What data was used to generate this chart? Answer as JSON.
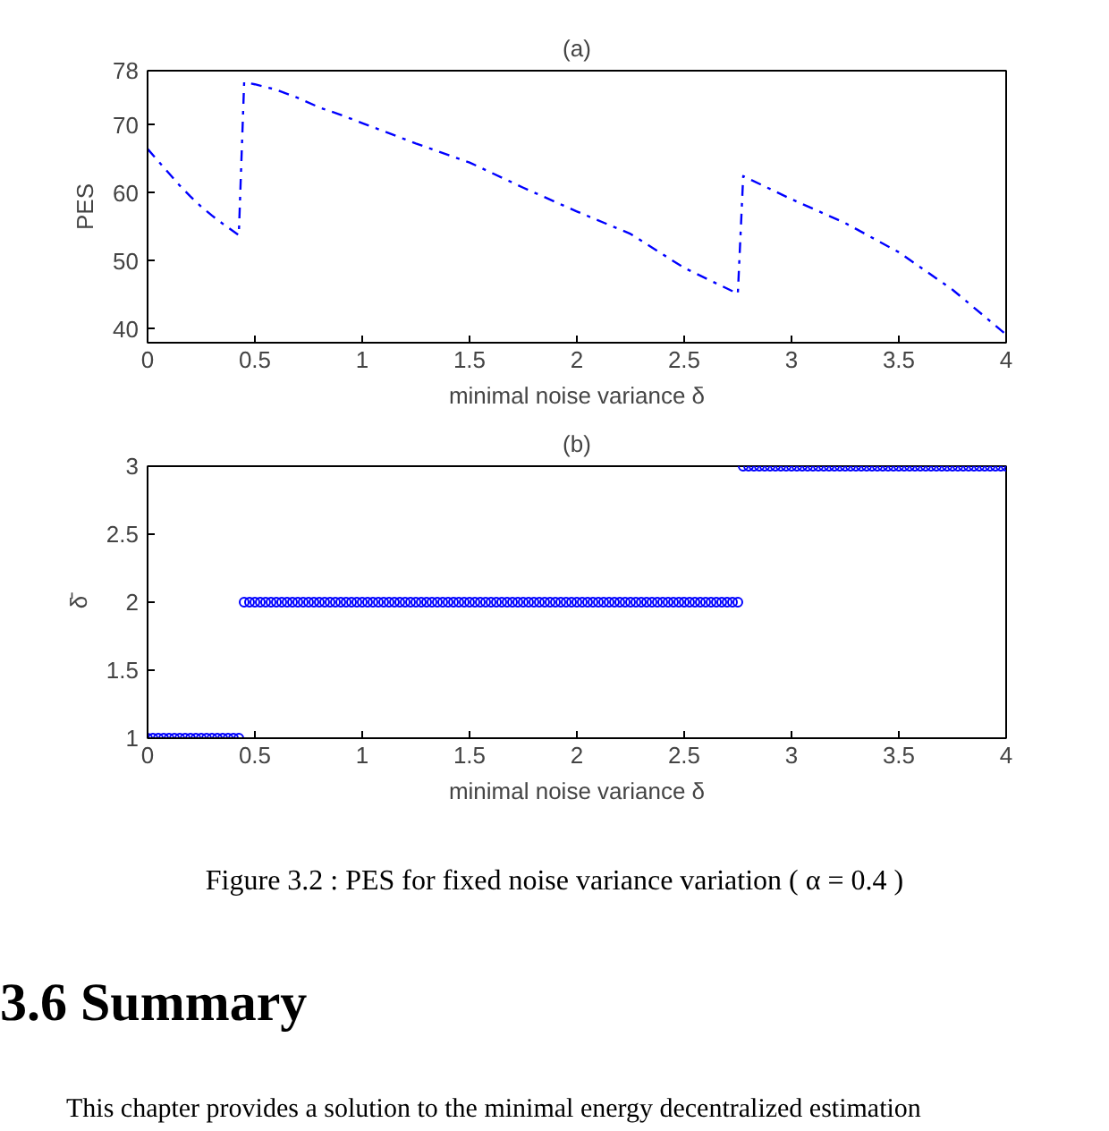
{
  "chart_data": [
    {
      "type": "line",
      "title": "(a)",
      "xlabel": "minimal noise variance δ",
      "ylabel": "PES",
      "color": "#0000ff",
      "line_style": "dashed",
      "x": [
        0,
        0.05,
        0.1,
        0.15,
        0.2,
        0.25,
        0.3,
        0.35,
        0.425,
        0.45,
        0.5,
        0.6,
        0.7,
        0.8,
        0.9,
        1.0,
        1.25,
        1.5,
        1.75,
        2.0,
        2.25,
        2.5,
        2.75,
        2.775,
        3.0,
        3.25,
        3.5,
        3.75,
        4.0
      ],
      "values": [
        66.5,
        64.7,
        62.9,
        61.1,
        59.5,
        58.0,
        56.7,
        55.5,
        53.8,
        76.3,
        76.0,
        75.2,
        74.0,
        72.6,
        71.5,
        70.3,
        67.3,
        64.5,
        60.8,
        57.3,
        54.0,
        49.0,
        45.2,
        62.5,
        59.1,
        55.6,
        51.3,
        45.8,
        39.2
      ],
      "xlim": [
        0,
        4
      ],
      "ylim": [
        38,
        78
      ],
      "xticks": [
        0,
        0.5,
        1,
        1.5,
        2,
        2.5,
        3,
        3.5,
        4
      ],
      "yticks": [
        40,
        50,
        60,
        70,
        78
      ]
    },
    {
      "type": "scatter",
      "title": "(b)",
      "xlabel": "minimal noise variance δ",
      "ylabel": "δ̄",
      "color": "#0000ff",
      "marker": "circle",
      "x": [
        0,
        0.025,
        0.05,
        0.075,
        0.1,
        0.125,
        0.15,
        0.175,
        0.2,
        0.225,
        0.25,
        0.275,
        0.3,
        0.325,
        0.35,
        0.375,
        0.4,
        0.425,
        0.45,
        0.475,
        0.5,
        0.525,
        0.55,
        0.575,
        0.6,
        0.625,
        0.65,
        0.675,
        0.7,
        0.725,
        0.75,
        0.775,
        0.8,
        0.825,
        0.85,
        0.875,
        0.9,
        0.925,
        0.95,
        0.975,
        1,
        1.025,
        1.05,
        1.075,
        1.1,
        1.125,
        1.15,
        1.175,
        1.2,
        1.225,
        1.25,
        1.275,
        1.3,
        1.325,
        1.35,
        1.375,
        1.4,
        1.425,
        1.45,
        1.475,
        1.5,
        1.525,
        1.55,
        1.575,
        1.6,
        1.625,
        1.65,
        1.675,
        1.7,
        1.725,
        1.75,
        1.775,
        1.8,
        1.825,
        1.85,
        1.875,
        1.9,
        1.925,
        1.95,
        1.975,
        2,
        2.025,
        2.05,
        2.075,
        2.1,
        2.125,
        2.15,
        2.175,
        2.2,
        2.225,
        2.25,
        2.275,
        2.3,
        2.325,
        2.35,
        2.375,
        2.4,
        2.425,
        2.45,
        2.475,
        2.5,
        2.525,
        2.55,
        2.575,
        2.6,
        2.625,
        2.65,
        2.675,
        2.7,
        2.725,
        2.75,
        2.775,
        2.8,
        2.825,
        2.85,
        2.875,
        2.9,
        2.925,
        2.95,
        2.975,
        3,
        3.025,
        3.05,
        3.075,
        3.1,
        3.125,
        3.15,
        3.175,
        3.2,
        3.225,
        3.25,
        3.275,
        3.3,
        3.325,
        3.35,
        3.375,
        3.4,
        3.425,
        3.45,
        3.475,
        3.5,
        3.525,
        3.55,
        3.575,
        3.6,
        3.625,
        3.65,
        3.675,
        3.7,
        3.725,
        3.75,
        3.775,
        3.8,
        3.825,
        3.85,
        3.875,
        3.9,
        3.925,
        3.95,
        3.975,
        4
      ],
      "values": [
        1,
        1,
        1,
        1,
        1,
        1,
        1,
        1,
        1,
        1,
        1,
        1,
        1,
        1,
        1,
        1,
        1,
        1,
        2,
        2,
        2,
        2,
        2,
        2,
        2,
        2,
        2,
        2,
        2,
        2,
        2,
        2,
        2,
        2,
        2,
        2,
        2,
        2,
        2,
        2,
        2,
        2,
        2,
        2,
        2,
        2,
        2,
        2,
        2,
        2,
        2,
        2,
        2,
        2,
        2,
        2,
        2,
        2,
        2,
        2,
        2,
        2,
        2,
        2,
        2,
        2,
        2,
        2,
        2,
        2,
        2,
        2,
        2,
        2,
        2,
        2,
        2,
        2,
        2,
        2,
        2,
        2,
        2,
        2,
        2,
        2,
        2,
        2,
        2,
        2,
        2,
        2,
        2,
        2,
        2,
        2,
        2,
        2,
        2,
        2,
        2,
        2,
        2,
        2,
        2,
        2,
        2,
        2,
        2,
        2,
        2,
        3,
        3,
        3,
        3,
        3,
        3,
        3,
        3,
        3,
        3,
        3,
        3,
        3,
        3,
        3,
        3,
        3,
        3,
        3,
        3,
        3,
        3,
        3,
        3,
        3,
        3,
        3,
        3,
        3,
        3,
        3,
        3,
        3,
        3,
        3,
        3,
        3,
        3,
        3,
        3,
        3,
        3,
        3,
        3,
        3,
        3,
        3,
        3,
        3,
        3
      ],
      "xlim": [
        0,
        4
      ],
      "ylim": [
        1,
        3
      ],
      "xticks": [
        0,
        0.5,
        1,
        1.5,
        2,
        2.5,
        3,
        3.5,
        4
      ],
      "yticks": [
        1,
        1.5,
        2,
        2.5,
        3
      ],
      "annotations": [
        "Figure 3.2 : PES for fixed noise variance variation ( α = 0.4 )",
        "3.6 Summary",
        "This chapter provides a solution to the minimal energy decentralized estimation"
      ]
    }
  ]
}
